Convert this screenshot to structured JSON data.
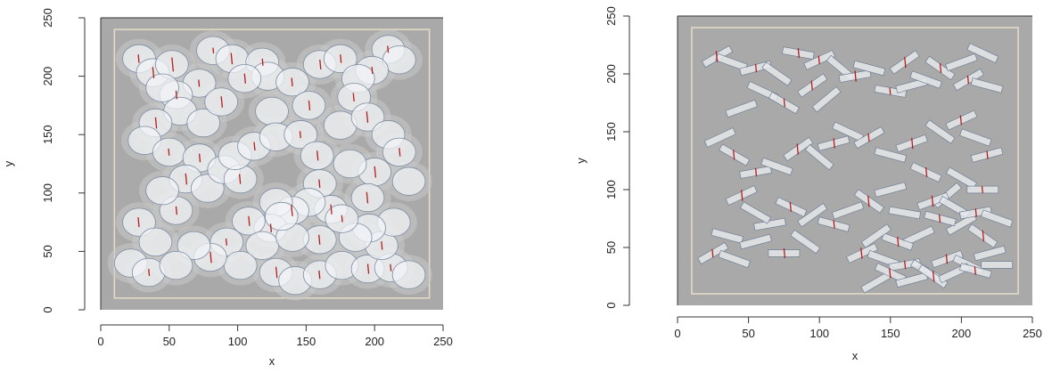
{
  "chart_data": [
    {
      "type": "scatter",
      "panel": "left",
      "title": "",
      "xlabel": "x",
      "ylabel": "y",
      "xlim": [
        0,
        250
      ],
      "ylim": [
        0,
        250
      ],
      "xticks": [
        0,
        50,
        100,
        150,
        200,
        250
      ],
      "yticks": [
        0,
        50,
        100,
        150,
        200,
        250
      ],
      "grid": false,
      "marker": "circle",
      "points": [
        [
          28,
          215
        ],
        [
          38,
          203
        ],
        [
          52,
          210
        ],
        [
          82,
          222
        ],
        [
          96,
          215
        ],
        [
          118,
          212
        ],
        [
          122,
          200
        ],
        [
          105,
          198
        ],
        [
          72,
          194
        ],
        [
          55,
          184
        ],
        [
          45,
          190
        ],
        [
          58,
          170
        ],
        [
          75,
          160
        ],
        [
          88,
          178
        ],
        [
          140,
          195
        ],
        [
          160,
          210
        ],
        [
          175,
          215
        ],
        [
          210,
          223
        ],
        [
          218,
          214
        ],
        [
          198,
          205
        ],
        [
          188,
          198
        ],
        [
          185,
          182
        ],
        [
          152,
          175
        ],
        [
          125,
          170
        ],
        [
          40,
          160
        ],
        [
          32,
          145
        ],
        [
          50,
          135
        ],
        [
          72,
          130
        ],
        [
          62,
          112
        ],
        [
          78,
          104
        ],
        [
          90,
          120
        ],
        [
          102,
          112
        ],
        [
          98,
          132
        ],
        [
          112,
          140
        ],
        [
          128,
          148
        ],
        [
          146,
          150
        ],
        [
          158,
          132
        ],
        [
          175,
          158
        ],
        [
          195,
          165
        ],
        [
          210,
          150
        ],
        [
          218,
          135
        ],
        [
          225,
          110
        ],
        [
          200,
          118
        ],
        [
          182,
          125
        ],
        [
          160,
          108
        ],
        [
          168,
          86
        ],
        [
          152,
          92
        ],
        [
          140,
          85
        ],
        [
          128,
          92
        ],
        [
          124,
          70
        ],
        [
          108,
          76
        ],
        [
          118,
          55
        ],
        [
          92,
          58
        ],
        [
          102,
          38
        ],
        [
          80,
          45
        ],
        [
          68,
          55
        ],
        [
          55,
          85
        ],
        [
          45,
          102
        ],
        [
          28,
          75
        ],
        [
          40,
          58
        ],
        [
          22,
          40
        ],
        [
          35,
          32
        ],
        [
          55,
          38
        ],
        [
          128,
          32
        ],
        [
          142,
          25
        ],
        [
          160,
          30
        ],
        [
          176,
          38
        ],
        [
          195,
          35
        ],
        [
          212,
          36
        ],
        [
          225,
          30
        ],
        [
          205,
          55
        ],
        [
          214,
          75
        ],
        [
          196,
          70
        ],
        [
          186,
          62
        ],
        [
          160,
          60
        ],
        [
          140,
          62
        ],
        [
          132,
          80
        ],
        [
          176,
          78
        ],
        [
          195,
          96
        ]
      ],
      "segments": [
        [
          28,
          215,
          -6
        ],
        [
          38,
          203,
          8
        ],
        [
          52,
          210,
          10
        ],
        [
          82,
          222,
          4
        ],
        [
          96,
          215,
          -8
        ],
        [
          118,
          212,
          5
        ],
        [
          105,
          198,
          7
        ],
        [
          72,
          194,
          -5
        ],
        [
          55,
          184,
          6
        ],
        [
          88,
          178,
          8
        ],
        [
          140,
          195,
          -6
        ],
        [
          160,
          210,
          7
        ],
        [
          175,
          215,
          6
        ],
        [
          210,
          223,
          -5
        ],
        [
          198,
          205,
          5
        ],
        [
          185,
          182,
          -6
        ],
        [
          152,
          175,
          7
        ],
        [
          40,
          160,
          8
        ],
        [
          50,
          135,
          -5
        ],
        [
          72,
          130,
          6
        ],
        [
          62,
          112,
          8
        ],
        [
          102,
          112,
          -7
        ],
        [
          112,
          140,
          6
        ],
        [
          146,
          150,
          -5
        ],
        [
          158,
          132,
          7
        ],
        [
          195,
          165,
          -8
        ],
        [
          218,
          135,
          6
        ],
        [
          200,
          118,
          8
        ],
        [
          160,
          108,
          -6
        ],
        [
          168,
          86,
          7
        ],
        [
          140,
          85,
          -8
        ],
        [
          124,
          70,
          6
        ],
        [
          108,
          76,
          7
        ],
        [
          92,
          58,
          -5
        ],
        [
          80,
          45,
          8
        ],
        [
          55,
          85,
          6
        ],
        [
          28,
          75,
          -7
        ],
        [
          35,
          32,
          5
        ],
        [
          128,
          32,
          8
        ],
        [
          160,
          30,
          -6
        ],
        [
          195,
          35,
          7
        ],
        [
          212,
          36,
          -5
        ],
        [
          205,
          55,
          6
        ],
        [
          160,
          60,
          -7
        ],
        [
          176,
          78,
          5
        ],
        [
          195,
          96,
          -8
        ]
      ]
    },
    {
      "type": "scatter",
      "panel": "right",
      "title": "",
      "xlabel": "x",
      "ylabel": "y",
      "xlim": [
        0,
        250
      ],
      "ylim": [
        0,
        250
      ],
      "xticks": [
        0,
        50,
        100,
        150,
        200,
        250
      ],
      "yticks": [
        0,
        50,
        100,
        150,
        200,
        250
      ],
      "grid": false,
      "marker": "rectangle",
      "points": [
        [
          28,
          215,
          -30
        ],
        [
          38,
          210,
          20
        ],
        [
          55,
          205,
          -15
        ],
        [
          70,
          200,
          35
        ],
        [
          85,
          218,
          10
        ],
        [
          100,
          212,
          -25
        ],
        [
          115,
          205,
          40
        ],
        [
          125,
          198,
          -10
        ],
        [
          135,
          205,
          15
        ],
        [
          95,
          190,
          -35
        ],
        [
          60,
          185,
          25
        ],
        [
          45,
          170,
          -20
        ],
        [
          75,
          175,
          30
        ],
        [
          105,
          178,
          -40
        ],
        [
          150,
          185,
          10
        ],
        [
          165,
          190,
          -15
        ],
        [
          185,
          205,
          35
        ],
        [
          200,
          210,
          -20
        ],
        [
          215,
          218,
          25
        ],
        [
          205,
          195,
          -30
        ],
        [
          218,
          190,
          15
        ],
        [
          160,
          210,
          -35
        ],
        [
          175,
          195,
          20
        ],
        [
          30,
          145,
          -25
        ],
        [
          40,
          130,
          30
        ],
        [
          55,
          115,
          -10
        ],
        [
          70,
          120,
          20
        ],
        [
          85,
          135,
          -35
        ],
        [
          100,
          128,
          40
        ],
        [
          110,
          140,
          -15
        ],
        [
          120,
          150,
          25
        ],
        [
          135,
          145,
          -30
        ],
        [
          150,
          130,
          15
        ],
        [
          165,
          140,
          -20
        ],
        [
          185,
          150,
          35
        ],
        [
          200,
          160,
          -25
        ],
        [
          210,
          145,
          20
        ],
        [
          218,
          130,
          -15
        ],
        [
          200,
          110,
          30
        ],
        [
          215,
          100,
          0
        ],
        [
          190,
          95,
          -40
        ],
        [
          175,
          115,
          25
        ],
        [
          150,
          100,
          -15
        ],
        [
          135,
          90,
          35
        ],
        [
          120,
          82,
          -20
        ],
        [
          110,
          70,
          15
        ],
        [
          95,
          78,
          -35
        ],
        [
          80,
          85,
          25
        ],
        [
          65,
          70,
          -10
        ],
        [
          55,
          80,
          30
        ],
        [
          45,
          95,
          -25
        ],
        [
          35,
          60,
          15
        ],
        [
          25,
          45,
          -30
        ],
        [
          40,
          40,
          20
        ],
        [
          55,
          55,
          -15
        ],
        [
          75,
          45,
          0
        ],
        [
          90,
          55,
          35
        ],
        [
          130,
          45,
          -25
        ],
        [
          145,
          40,
          20
        ],
        [
          160,
          35,
          -10
        ],
        [
          175,
          30,
          30
        ],
        [
          190,
          40,
          -20
        ],
        [
          205,
          35,
          25
        ],
        [
          220,
          45,
          -15
        ],
        [
          215,
          60,
          35
        ],
        [
          200,
          70,
          -30
        ],
        [
          185,
          75,
          15
        ],
        [
          170,
          60,
          -25
        ],
        [
          155,
          55,
          20
        ],
        [
          140,
          60,
          -35
        ],
        [
          160,
          80,
          10
        ],
        [
          180,
          90,
          -20
        ],
        [
          195,
          85,
          30
        ],
        [
          210,
          80,
          -10
        ],
        [
          225,
          75,
          20
        ],
        [
          140,
          20,
          -30
        ],
        [
          150,
          28,
          25
        ],
        [
          165,
          22,
          -15
        ],
        [
          180,
          25,
          35
        ],
        [
          195,
          28,
          -25
        ],
        [
          210,
          30,
          15
        ],
        [
          225,
          35,
          0
        ]
      ],
      "segments": [
        [
          28,
          215,
          -8
        ],
        [
          55,
          205,
          6
        ],
        [
          85,
          218,
          7
        ],
        [
          100,
          212,
          -6
        ],
        [
          125,
          198,
          8
        ],
        [
          95,
          190,
          -7
        ],
        [
          75,
          175,
          6
        ],
        [
          150,
          185,
          -5
        ],
        [
          185,
          205,
          7
        ],
        [
          205,
          195,
          -6
        ],
        [
          160,
          210,
          8
        ],
        [
          40,
          130,
          -7
        ],
        [
          55,
          115,
          6
        ],
        [
          85,
          135,
          -8
        ],
        [
          110,
          140,
          7
        ],
        [
          135,
          145,
          -6
        ],
        [
          165,
          140,
          8
        ],
        [
          200,
          160,
          -7
        ],
        [
          218,
          130,
          6
        ],
        [
          215,
          100,
          -5
        ],
        [
          175,
          115,
          7
        ],
        [
          135,
          90,
          -8
        ],
        [
          110,
          70,
          6
        ],
        [
          80,
          85,
          -7
        ],
        [
          45,
          95,
          8
        ],
        [
          25,
          45,
          -6
        ],
        [
          75,
          45,
          7
        ],
        [
          130,
          45,
          -8
        ],
        [
          160,
          35,
          6
        ],
        [
          190,
          40,
          -7
        ],
        [
          215,
          60,
          8
        ],
        [
          185,
          75,
          -6
        ],
        [
          155,
          55,
          7
        ],
        [
          180,
          90,
          -8
        ],
        [
          210,
          80,
          6
        ],
        [
          150,
          28,
          -7
        ],
        [
          180,
          25,
          8
        ],
        [
          210,
          30,
          -6
        ]
      ]
    }
  ]
}
